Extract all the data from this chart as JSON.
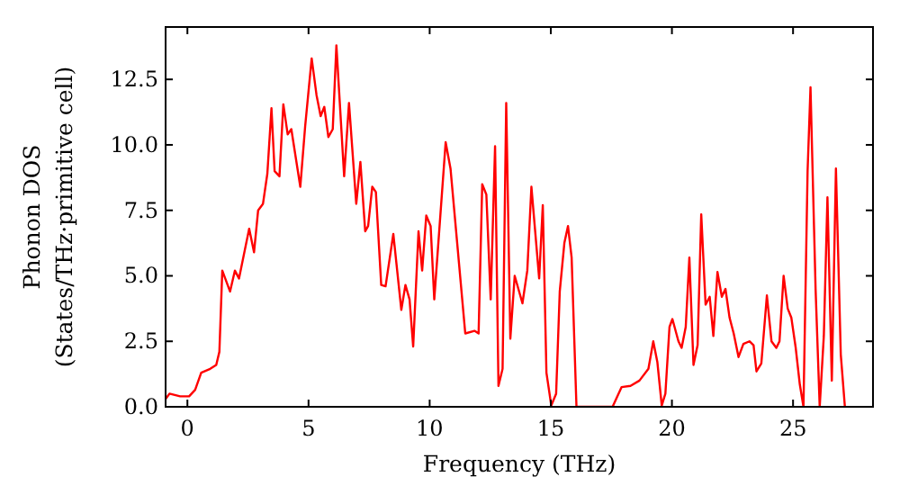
{
  "chart_data": {
    "type": "line",
    "xlabel": "Frequency (THz)",
    "ylabel": "Phonon DOS\n(States/THz·primitive cell)",
    "xlim": [
      -0.9,
      28.3
    ],
    "ylim": [
      0,
      14.5
    ],
    "xticks": [
      0,
      5,
      10,
      15,
      20,
      25
    ],
    "yticks": [
      {
        "value": 0,
        "label": "0.0"
      },
      {
        "value": 2.5,
        "label": "2.5"
      },
      {
        "value": 5,
        "label": "5.0"
      },
      {
        "value": 7.5,
        "label": "7.5"
      },
      {
        "value": 10,
        "label": "10.0"
      },
      {
        "value": 12.5,
        "label": "12.5"
      }
    ],
    "grid": false,
    "x": [
      -0.9,
      -0.74,
      -0.3,
      0.07,
      0.32,
      0.57,
      0.94,
      1.19,
      1.32,
      1.44,
      1.76,
      1.96,
      2.13,
      2.55,
      2.75,
      2.92,
      3.12,
      3.3,
      3.47,
      3.6,
      3.8,
      3.96,
      4.14,
      4.29,
      4.66,
      4.86,
      5.13,
      5.33,
      5.5,
      5.65,
      5.82,
      6.0,
      6.15,
      6.47,
      6.67,
      6.97,
      7.14,
      7.34,
      7.46,
      7.63,
      7.78,
      8.0,
      8.18,
      8.5,
      8.83,
      9.0,
      9.17,
      9.32,
      9.54,
      9.69,
      9.86,
      10.04,
      10.19,
      10.66,
      10.86,
      11.47,
      11.85,
      12.02,
      12.17,
      12.34,
      12.52,
      12.7,
      12.84,
      13.01,
      13.16,
      13.33,
      13.51,
      13.83,
      14.03,
      14.2,
      14.52,
      14.67,
      14.82,
      15.02,
      15.22,
      15.37,
      15.56,
      15.71,
      15.86,
      16.06,
      17.55,
      17.92,
      18.29,
      18.66,
      19.03,
      19.23,
      19.4,
      19.58,
      19.73,
      19.9,
      20.02,
      20.27,
      20.4,
      20.57,
      20.72,
      20.89,
      21.06,
      21.21,
      21.39,
      21.56,
      21.71,
      21.88,
      22.06,
      22.21,
      22.38,
      22.55,
      22.75,
      22.95,
      23.2,
      23.37,
      23.49,
      23.69,
      23.92,
      24.11,
      24.31,
      24.44,
      24.61,
      24.78,
      24.93,
      25.11,
      25.28,
      25.43,
      25.6,
      25.72,
      25.93,
      26.1,
      26.27,
      26.42,
      26.6,
      26.77,
      26.97,
      27.14
    ],
    "series": [
      {
        "color": "#ff0000",
        "values": [
          0.3,
          0.5,
          0.4,
          0.4,
          0.65,
          1.3,
          1.45,
          1.6,
          2.1,
          5.2,
          4.4,
          5.2,
          4.9,
          6.8,
          5.9,
          7.5,
          7.75,
          8.9,
          11.4,
          9.0,
          8.8,
          11.55,
          10.4,
          10.6,
          8.4,
          10.7,
          13.3,
          11.9,
          11.1,
          11.45,
          10.3,
          10.6,
          13.8,
          8.8,
          11.6,
          7.75,
          9.35,
          6.7,
          6.9,
          8.4,
          8.2,
          4.65,
          4.6,
          6.6,
          3.7,
          4.65,
          4.1,
          2.3,
          6.7,
          5.2,
          7.3,
          6.9,
          4.1,
          10.1,
          9.1,
          2.8,
          2.9,
          2.8,
          8.5,
          8.1,
          4.1,
          9.95,
          0.8,
          1.45,
          11.6,
          2.6,
          5.0,
          3.95,
          5.2,
          8.4,
          4.9,
          7.7,
          1.3,
          0.05,
          0.5,
          4.4,
          6.25,
          6.9,
          5.7,
          0,
          0,
          0.75,
          0.8,
          1.0,
          1.45,
          2.5,
          1.7,
          0.05,
          0.5,
          3.05,
          3.35,
          2.5,
          2.25,
          3.05,
          5.7,
          1.6,
          2.35,
          7.35,
          3.9,
          4.2,
          2.7,
          5.15,
          4.2,
          4.5,
          3.4,
          2.8,
          1.9,
          2.4,
          2.5,
          2.35,
          1.35,
          1.65,
          4.25,
          2.5,
          2.25,
          2.5,
          5.0,
          3.75,
          3.4,
          2.25,
          0.85,
          0,
          9.0,
          12.2,
          4.5,
          0,
          2.7,
          8.0,
          1.0,
          9.1,
          2.0,
          0
        ]
      }
    ]
  }
}
